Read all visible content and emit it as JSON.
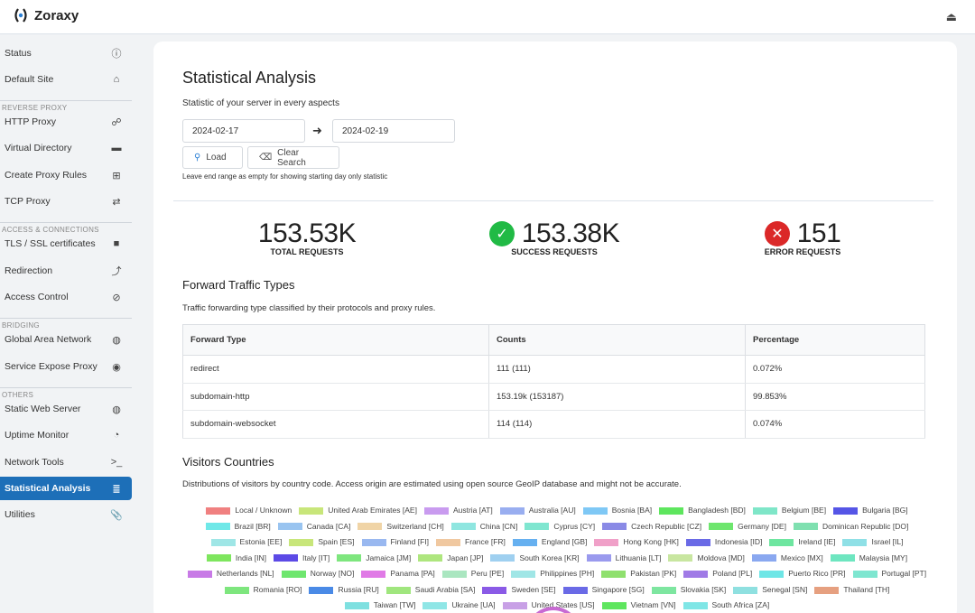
{
  "app": {
    "name": "Zoraxy"
  },
  "sidebar": {
    "items": [
      {
        "label": "Status",
        "icon": "info-circle-icon",
        "glyph": "ⓘ"
      },
      {
        "label": "Default Site",
        "icon": "home-icon",
        "glyph": "⌂"
      },
      {
        "label": "HTTP Proxy",
        "icon": "sitemap-icon",
        "glyph": "☍"
      },
      {
        "label": "Virtual Directory",
        "icon": "folder-icon",
        "glyph": "▬"
      },
      {
        "label": "Create Proxy Rules",
        "icon": "plus-square-icon",
        "glyph": "⊞"
      },
      {
        "label": "TCP Proxy",
        "icon": "exchange-icon",
        "glyph": "⇄"
      },
      {
        "label": "TLS / SSL certificates",
        "icon": "lock-icon",
        "glyph": "🔒"
      },
      {
        "label": "Redirection",
        "icon": "redirect-arrow-icon",
        "glyph": "⮥"
      },
      {
        "label": "Access Control",
        "icon": "ban-icon",
        "glyph": "⊘"
      },
      {
        "label": "Global Area Network",
        "icon": "globe-icon",
        "glyph": "◍"
      },
      {
        "label": "Service Expose Proxy",
        "icon": "podcast-icon",
        "glyph": "◉"
      },
      {
        "label": "Static Web Server",
        "icon": "globe-icon",
        "glyph": "◍"
      },
      {
        "label": "Uptime Monitor",
        "icon": "clock-icon",
        "glyph": "◔"
      },
      {
        "label": "Network Tools",
        "icon": "terminal-icon",
        "glyph": ">_"
      },
      {
        "label": "Statistical Analysis",
        "icon": "database-icon",
        "glyph": "≣"
      },
      {
        "label": "Utilities",
        "icon": "paperclip-icon",
        "glyph": "⌀"
      }
    ],
    "sections": [
      "REVERSE PROXY",
      "ACCESS & CONNECTIONS",
      "BRIDGING",
      "OTHERS"
    ]
  },
  "page": {
    "title": "Statistical Analysis",
    "subtitle": "Statistic of your server in every aspects",
    "start_date": "2024-02-17",
    "end_date": "2024-02-19",
    "load_label": "Load",
    "clear_label": "Clear Search",
    "hint": "Leave end range as empty for showing starting day only statistic"
  },
  "stats": {
    "total": {
      "value": "153.53K",
      "label": "TOTAL REQUESTS"
    },
    "success": {
      "value": "153.38K",
      "label": "SUCCESS REQUESTS"
    },
    "error": {
      "value": "151",
      "label": "ERROR REQUESTS"
    }
  },
  "traffic": {
    "title": "Forward Traffic Types",
    "description": "Traffic forwarding type classified by their protocols and proxy rules.",
    "headers": [
      "Forward Type",
      "Counts",
      "Percentage"
    ],
    "rows": [
      [
        "redirect",
        "111 (111)",
        "0.072%"
      ],
      [
        "subdomain-http",
        "153.19k (153187)",
        "99.853%"
      ],
      [
        "subdomain-websocket",
        "114 (114)",
        "0.074%"
      ]
    ]
  },
  "visitors": {
    "title": "Visitors Countries",
    "description": "Distributions of visitors by country code. Access origin are estimated using open source GeoIP database and might not be accurate.",
    "legend": [
      {
        "label": "Local / Unknown",
        "color": "#f08080"
      },
      {
        "label": "United Arab Emirates [AE]",
        "color": "#c8e67a"
      },
      {
        "label": "Austria [AT]",
        "color": "#c99bef"
      },
      {
        "label": "Australia [AU]",
        "color": "#99aef0"
      },
      {
        "label": "Bosnia [BA]",
        "color": "#7fc8f5"
      },
      {
        "label": "Bangladesh [BD]",
        "color": "#5ee65e"
      },
      {
        "label": "Belgium [BE]",
        "color": "#7fe6c8"
      },
      {
        "label": "Bulgaria [BG]",
        "color": "#5555e6"
      },
      {
        "label": "Brazil [BR]",
        "color": "#6fe8e8"
      },
      {
        "label": "Canada [CA]",
        "color": "#99c4f0"
      },
      {
        "label": "Switzerland [CH]",
        "color": "#f0d4a6"
      },
      {
        "label": "China [CN]",
        "color": "#8fe6e0"
      },
      {
        "label": "Cyprus [CY]",
        "color": "#7fe6d0"
      },
      {
        "label": "Czech Republic [CZ]",
        "color": "#8a8ae6"
      },
      {
        "label": "Germany [DE]",
        "color": "#6ee66e"
      },
      {
        "label": "Dominican Republic [DO]",
        "color": "#7fe0b0"
      },
      {
        "label": "Estonia [EE]",
        "color": "#9fe6e6"
      },
      {
        "label": "Spain [ES]",
        "color": "#c8e67a"
      },
      {
        "label": "Finland [FI]",
        "color": "#99b8f0"
      },
      {
        "label": "France [FR]",
        "color": "#f0c8a0"
      },
      {
        "label": "England [GB]",
        "color": "#66b0f0"
      },
      {
        "label": "Hong Kong [HK]",
        "color": "#f0a0c8"
      },
      {
        "label": "Indonesia [ID]",
        "color": "#6a6ae6"
      },
      {
        "label": "Ireland [IE]",
        "color": "#6ee6a0"
      },
      {
        "label": "Israel [IL]",
        "color": "#8fe0e6"
      },
      {
        "label": "India [IN]",
        "color": "#7ee65e"
      },
      {
        "label": "Italy [IT]",
        "color": "#5c4ae6"
      },
      {
        "label": "Jamaica [JM]",
        "color": "#7ee67e"
      },
      {
        "label": "Japan [JP]",
        "color": "#aee67e"
      },
      {
        "label": "South Korea [KR]",
        "color": "#9fd0f0"
      },
      {
        "label": "Lithuania [LT]",
        "color": "#9a9aee"
      },
      {
        "label": "Moldova [MD]",
        "color": "#c8e6a0"
      },
      {
        "label": "Mexico [MX]",
        "color": "#8aa8f0"
      },
      {
        "label": "Malaysia [MY]",
        "color": "#6ee6c0"
      },
      {
        "label": "Netherlands [NL]",
        "color": "#c87ae6"
      },
      {
        "label": "Norway [NO]",
        "color": "#6ee66e"
      },
      {
        "label": "Panama [PA]",
        "color": "#e07ae6"
      },
      {
        "label": "Peru [PE]",
        "color": "#aae6c0"
      },
      {
        "label": "Philippines [PH]",
        "color": "#a0e6e6"
      },
      {
        "label": "Pakistan [PK]",
        "color": "#8fe06e"
      },
      {
        "label": "Poland [PL]",
        "color": "#a07ae6"
      },
      {
        "label": "Puerto Rico [PR]",
        "color": "#6ee6e6"
      },
      {
        "label": "Portugal [PT]",
        "color": "#7ee6d0"
      },
      {
        "label": "Romania [RO]",
        "color": "#7ee67e"
      },
      {
        "label": "Russia [RU]",
        "color": "#4a8ae6"
      },
      {
        "label": "Saudi Arabia [SA]",
        "color": "#a0e67e"
      },
      {
        "label": "Sweden [SE]",
        "color": "#8a5ae6"
      },
      {
        "label": "Singapore [SG]",
        "color": "#6a6ae6"
      },
      {
        "label": "Slovakia [SK]",
        "color": "#7ee6a0"
      },
      {
        "label": "Senegal [SN]",
        "color": "#8fe0e0"
      },
      {
        "label": "Thailand [TH]",
        "color": "#e6a080"
      },
      {
        "label": "Taiwan [TW]",
        "color": "#7ee0e0"
      },
      {
        "label": "Ukraine [UA]",
        "color": "#8fe6e6"
      },
      {
        "label": "United States [US]",
        "color": "#c8a0e6"
      },
      {
        "label": "Vietnam [VN]",
        "color": "#5ee65e"
      },
      {
        "label": "South Africa [ZA]",
        "color": "#7fe6e6"
      }
    ]
  }
}
